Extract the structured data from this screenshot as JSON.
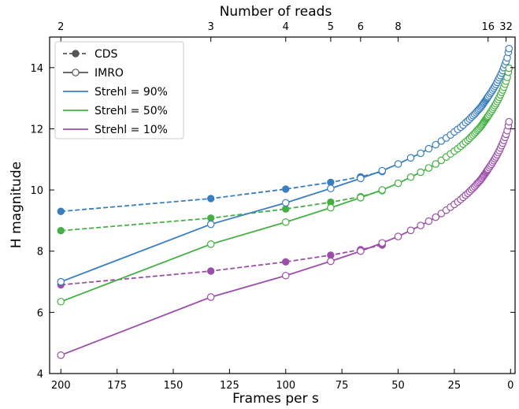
{
  "chart_data": {
    "type": "line",
    "xlabel": "Frames per s",
    "ylabel": "H magnitude",
    "top_xlabel": "Number of reads",
    "x_reversed": true,
    "xlim": [
      205,
      -2
    ],
    "ylim": [
      4,
      15
    ],
    "xticks": [
      200,
      175,
      150,
      125,
      100,
      75,
      50,
      25,
      0
    ],
    "yticks": [
      4,
      6,
      8,
      10,
      12,
      14
    ],
    "top_ticks": [
      {
        "label": "2",
        "fps": 200
      },
      {
        "label": "3",
        "fps": 133.3
      },
      {
        "label": "4",
        "fps": 100
      },
      {
        "label": "5",
        "fps": 80
      },
      {
        "label": "6",
        "fps": 66.7
      },
      {
        "label": "8",
        "fps": 50
      },
      {
        "label": "16",
        "fps": 10
      },
      {
        "label": "32",
        "fps": 2
      }
    ],
    "legend": {
      "position": "upper-left",
      "entries": [
        {
          "label": "CDS",
          "style": "dashed-filled",
          "color": "#555555"
        },
        {
          "label": "IMRO",
          "style": "solid-open",
          "color": "#555555"
        },
        {
          "label": "Strehl = 90%",
          "style": "line",
          "color": "#3a7ebf"
        },
        {
          "label": "Strehl = 50%",
          "style": "line",
          "color": "#44b044"
        },
        {
          "label": "Strehl = 10%",
          "style": "line",
          "color": "#9b4ea8"
        }
      ]
    },
    "series": [
      {
        "name": "CDS, Strehl = 90%",
        "mode": "CDS",
        "color": "#3a7ebf",
        "x": [
          200,
          133.3,
          100,
          80,
          66.7,
          57.1
        ],
        "y": [
          9.3,
          9.72,
          10.03,
          10.25,
          10.43,
          10.6
        ]
      },
      {
        "name": "CDS, Strehl = 50%",
        "mode": "CDS",
        "color": "#44b044",
        "x": [
          200,
          133.3,
          100,
          80,
          66.7,
          57.1
        ],
        "y": [
          8.67,
          9.08,
          9.38,
          9.6,
          9.78,
          9.98
        ]
      },
      {
        "name": "CDS, Strehl = 10%",
        "mode": "CDS",
        "color": "#9b4ea8",
        "x": [
          200,
          133.3,
          100,
          80,
          66.7,
          57.1
        ],
        "y": [
          6.9,
          7.35,
          7.65,
          7.87,
          8.05,
          8.2
        ]
      },
      {
        "name": "IMRO, Strehl = 90%",
        "mode": "IMRO",
        "color": "#3a7ebf",
        "x": [
          200,
          133.3,
          100,
          80,
          66.7,
          57.1,
          50,
          44.4,
          40,
          36.4,
          33.3,
          30.8,
          28.6,
          26.7,
          25,
          23.5,
          22.2,
          21.1,
          20,
          19,
          18.2,
          17.4,
          16.7,
          16,
          15.4,
          14.8,
          14.3,
          13.8,
          13.3,
          12.9,
          12.5,
          12.1,
          11.8,
          11.4,
          11.1,
          10.8,
          10.5,
          10.3,
          10,
          9.5,
          9,
          8.5,
          8,
          7.5,
          7,
          6.5,
          6,
          5.5,
          5,
          4.5,
          4,
          3.5,
          3,
          2.5,
          2,
          1.5,
          1,
          0.7
        ],
        "y": [
          7.0,
          8.88,
          9.58,
          10.05,
          10.38,
          10.63,
          10.85,
          11.05,
          11.2,
          11.35,
          11.48,
          11.6,
          11.7,
          11.8,
          11.9,
          11.98,
          12.05,
          12.12,
          12.2,
          12.26,
          12.32,
          12.38,
          12.43,
          12.48,
          12.53,
          12.58,
          12.62,
          12.66,
          12.7,
          12.74,
          12.78,
          12.82,
          12.86,
          12.89,
          12.93,
          12.96,
          12.99,
          13.02,
          13.05,
          13.1,
          13.16,
          13.21,
          13.27,
          13.33,
          13.39,
          13.45,
          13.52,
          13.6,
          13.67,
          13.74,
          13.82,
          13.9,
          14.0,
          14.1,
          14.2,
          14.32,
          14.5,
          14.62
        ]
      },
      {
        "name": "IMRO, Strehl = 50%",
        "mode": "IMRO",
        "color": "#44b044",
        "x": [
          200,
          133.3,
          100,
          80,
          66.7,
          57.1,
          50,
          44.4,
          40,
          36.4,
          33.3,
          30.8,
          28.6,
          26.7,
          25,
          23.5,
          22.2,
          21.1,
          20,
          19,
          18.2,
          17.4,
          16.7,
          16,
          15.4,
          14.8,
          14.3,
          13.8,
          13.3,
          12.9,
          12.5,
          12.1,
          11.8,
          11.4,
          11.1,
          10.8,
          10.5,
          10.3,
          10,
          9.5,
          9,
          8.5,
          8,
          7.5,
          7,
          6.5,
          6,
          5.5,
          5,
          4.5,
          4,
          3.5,
          3,
          2.5,
          2,
          1.5,
          1,
          0.7
        ],
        "y": [
          6.35,
          8.23,
          8.95,
          9.42,
          9.75,
          10.0,
          10.22,
          10.42,
          10.58,
          10.72,
          10.85,
          10.97,
          11.08,
          11.18,
          11.27,
          11.35,
          11.43,
          11.5,
          11.57,
          11.63,
          11.69,
          11.75,
          11.8,
          11.85,
          11.9,
          11.95,
          11.99,
          12.03,
          12.07,
          12.11,
          12.15,
          12.19,
          12.23,
          12.26,
          12.3,
          12.33,
          12.36,
          12.39,
          12.42,
          12.47,
          12.53,
          12.58,
          12.64,
          12.7,
          12.76,
          12.82,
          12.89,
          12.96,
          13.03,
          13.11,
          13.19,
          13.27,
          13.36,
          13.46,
          13.56,
          13.68,
          13.85,
          13.98
        ]
      },
      {
        "name": "IMRO, Strehl = 10%",
        "mode": "IMRO",
        "color": "#9b4ea8",
        "x": [
          200,
          133.3,
          100,
          80,
          66.7,
          57.1,
          50,
          44.4,
          40,
          36.4,
          33.3,
          30.8,
          28.6,
          26.7,
          25,
          23.5,
          22.2,
          21.1,
          20,
          19,
          18.2,
          17.4,
          16.7,
          16,
          15.4,
          14.8,
          14.3,
          13.8,
          13.3,
          12.9,
          12.5,
          12.1,
          11.8,
          11.4,
          11.1,
          10.8,
          10.5,
          10.3,
          10,
          9.5,
          9,
          8.5,
          8,
          7.5,
          7,
          6.5,
          6,
          5.5,
          5,
          4.5,
          4,
          3.5,
          3,
          2.5,
          2,
          1.5,
          1,
          0.7
        ],
        "y": [
          4.6,
          6.5,
          7.2,
          7.67,
          8.0,
          8.27,
          8.48,
          8.68,
          8.84,
          8.98,
          9.11,
          9.23,
          9.34,
          9.44,
          9.53,
          9.61,
          9.69,
          9.76,
          9.83,
          9.89,
          9.95,
          10.01,
          10.06,
          10.11,
          10.16,
          10.21,
          10.25,
          10.29,
          10.33,
          10.37,
          10.41,
          10.45,
          10.49,
          10.52,
          10.56,
          10.59,
          10.62,
          10.65,
          10.68,
          10.73,
          10.79,
          10.84,
          10.9,
          10.96,
          11.02,
          11.08,
          11.15,
          11.22,
          11.29,
          11.37,
          11.45,
          11.53,
          11.62,
          11.72,
          11.82,
          11.94,
          12.1,
          12.23
        ]
      }
    ]
  }
}
